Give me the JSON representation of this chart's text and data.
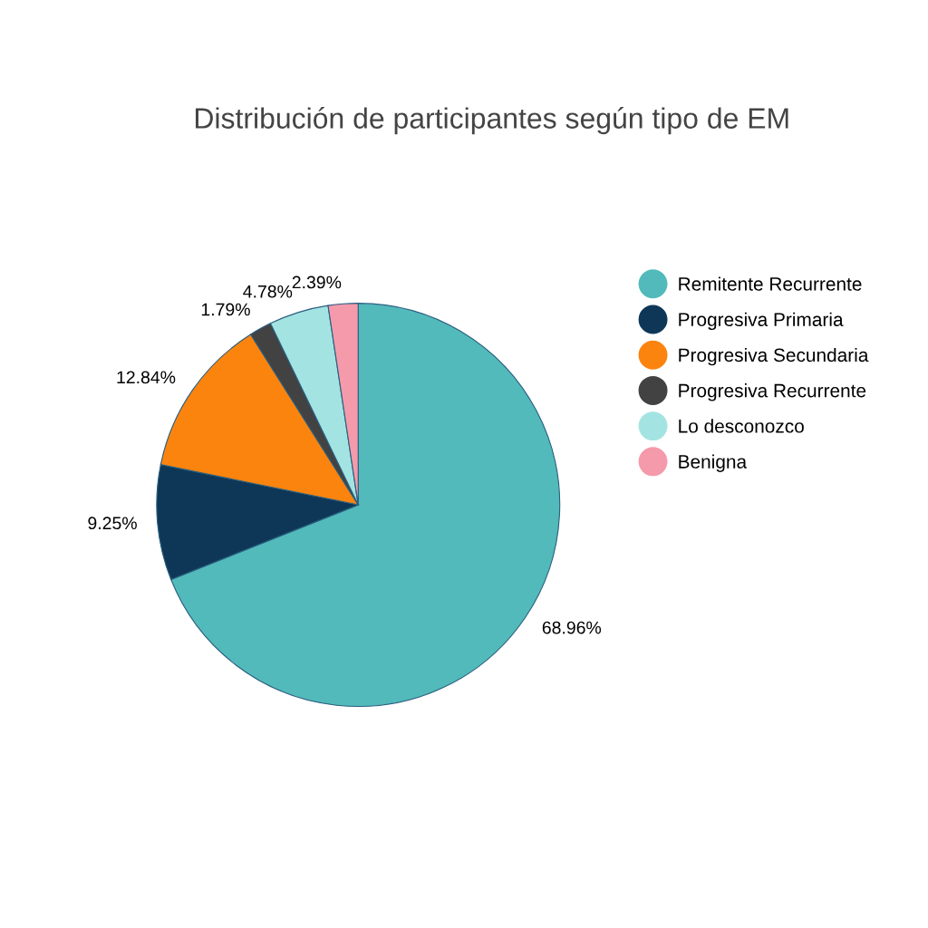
{
  "chart_data": {
    "type": "pie",
    "title": "Distribución de participantes según tipo de EM",
    "categories": [
      "Remitente Recurrente",
      "Progresiva Primaria",
      "Progresiva Secundaria",
      "Progresiva Recurrente",
      "Lo desconozco",
      "Benigna"
    ],
    "values": [
      68.96,
      9.25,
      12.84,
      1.79,
      4.78,
      2.39
    ],
    "value_labels": [
      "68.96%",
      "9.25%",
      "12.84%",
      "1.79%",
      "4.78%",
      "2.39%"
    ],
    "colors": [
      "#52baba",
      "#0e3757",
      "#fb840e",
      "#424242",
      "#a3e4e2",
      "#f59aab"
    ],
    "legend": "right"
  }
}
